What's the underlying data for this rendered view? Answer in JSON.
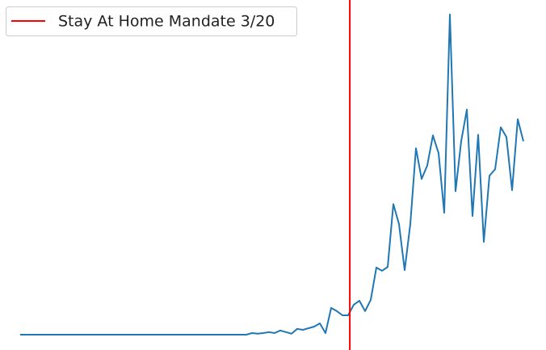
{
  "chart_data": {
    "type": "line",
    "values": [
      0,
      0,
      0,
      0,
      0,
      0,
      0,
      0,
      0,
      0,
      0,
      0,
      0,
      0,
      0,
      0,
      0,
      0,
      0,
      0,
      0,
      0,
      0,
      0,
      0,
      0,
      0,
      0,
      0,
      0,
      0,
      0,
      0,
      0,
      0,
      0,
      0,
      0,
      0,
      0,
      0,
      0.5,
      0.3,
      0.5,
      0.8,
      0.5,
      1.3,
      0.8,
      0.3,
      1.8,
      1.5,
      2,
      2.5,
      3.5,
      0.5,
      8.3,
      7.3,
      6,
      6,
      9.3,
      10.5,
      7.3,
      10.8,
      20.8,
      19.8,
      21,
      40.5,
      34.3,
      20,
      34.3,
      57.8,
      48.3,
      52.5,
      61.8,
      56.3,
      37.8,
      99.3,
      44.5,
      60,
      69.8,
      36.8,
      62,
      28.8,
      49.3,
      51.3,
      64.3,
      61.3,
      44.8,
      66.8,
      60
    ],
    "color": "#1f77b4",
    "xlim": [
      0,
      89
    ],
    "ylim": [
      0,
      99.3
    ],
    "vline": {
      "x": 58.3,
      "label": "Stay At Home Mandate 3/20",
      "color": "#ff0000"
    },
    "legend": "upper left"
  }
}
